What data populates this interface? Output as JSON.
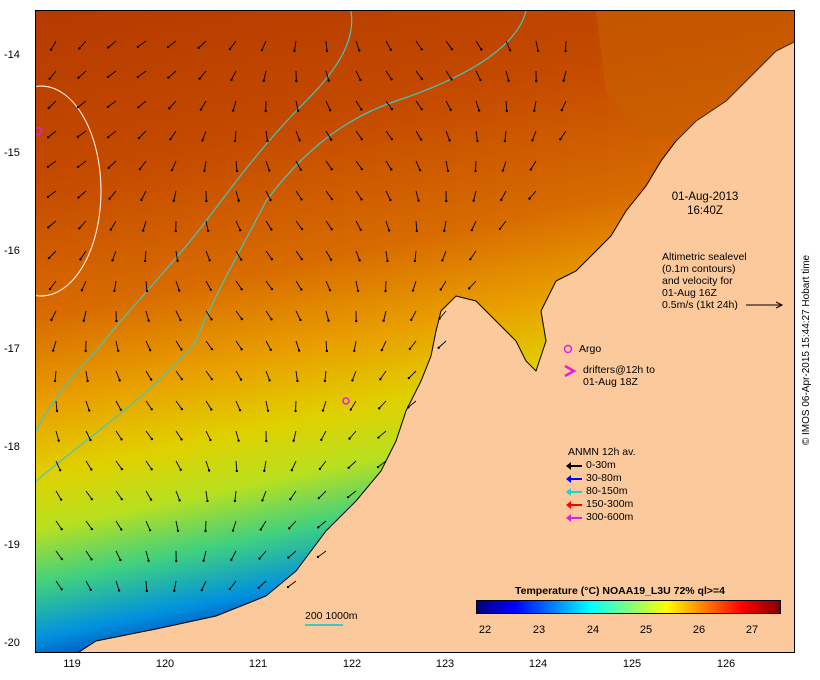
{
  "map": {
    "x_ticks": [
      "119",
      "120",
      "121",
      "122",
      "123",
      "124",
      "125",
      "126"
    ],
    "y_ticks": [
      "-14",
      "-15",
      "-16",
      "-17",
      "-18",
      "-19",
      "-20"
    ]
  },
  "timestamp": {
    "date": "01-Aug-2013",
    "time": "16:40Z"
  },
  "altimetry": {
    "line1": "Altimetric sealevel",
    "line2": "(0.1m contours)",
    "line3": "and velocity for",
    "line4": "01-Aug 16Z",
    "line5": "0.5m/s (1kt 24h)"
  },
  "argo": {
    "label": "Argo",
    "color": "#e020e0"
  },
  "drifters": {
    "line1": "drifters@12h to",
    "line2": "01-Aug 18Z",
    "color": "#e020e0"
  },
  "anmn": {
    "title": "ANMN 12h av.",
    "items": [
      {
        "label": "0-30m",
        "color": "#000000"
      },
      {
        "label": "30-80m",
        "color": "#0000ff"
      },
      {
        "label": "80-150m",
        "color": "#20d0d0"
      },
      {
        "label": "150-300m",
        "color": "#ff0000"
      },
      {
        "label": "300-600m",
        "color": "#e020e0"
      }
    ]
  },
  "depth_legend": {
    "label": "200  1000m"
  },
  "colorbar": {
    "title": "Temperature (°C) NOAA19_L3U 72% ql>=4",
    "ticks": [
      "22",
      "23",
      "24",
      "25",
      "26",
      "27"
    ],
    "colors": [
      "#00007f",
      "#0000ff",
      "#007fff",
      "#00ffff",
      "#7fff7f",
      "#ffff00",
      "#ff7f00",
      "#ff0000",
      "#7f0000"
    ]
  },
  "credit": "© IMOS 06-Apr-2015 15:44:27 Hobart time"
}
